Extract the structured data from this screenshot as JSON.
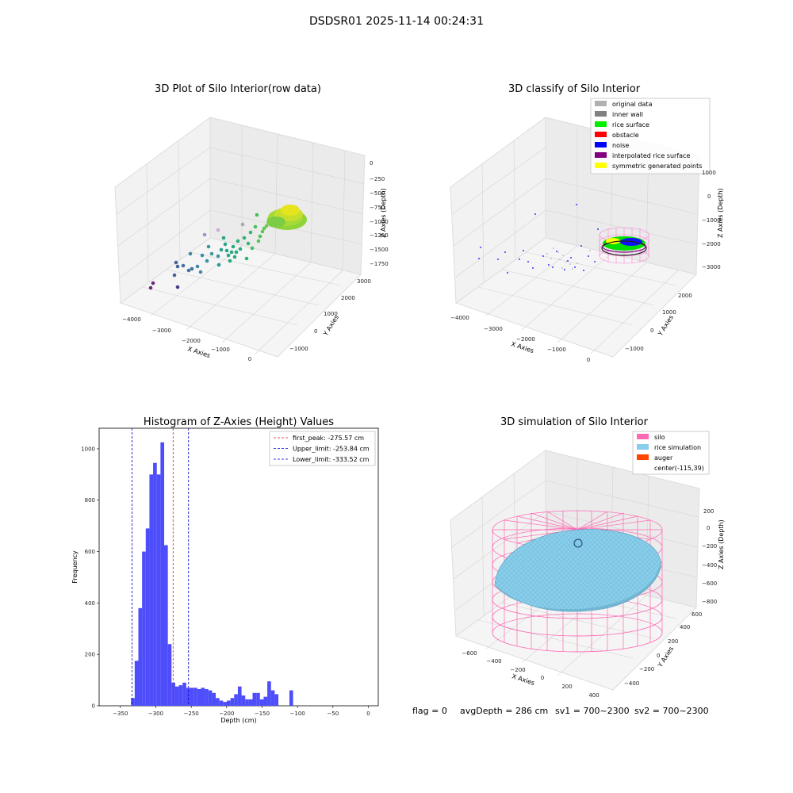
{
  "suptitle": "DSDSR01 2025-11-14 00:24:31",
  "footer": {
    "flag": "flag = 0",
    "avg_depth": "avgDepth = 286 cm",
    "sv1": "sv1 = 700~2300",
    "sv2": "sv2 = 700~2300"
  },
  "colors": {
    "hist_bar": "#4d4dfb",
    "first_peak": "#e31a1c",
    "limits": "#0000cc",
    "silo": "#ff69b4",
    "rice": "#87ceeb",
    "auger": "#ff4500",
    "original": "#b0b0b0",
    "inner_wall": "#808080",
    "rice_surface": "#00ee00",
    "obstacle": "#ff0000",
    "noise": "#0000ff",
    "interpolated": "#800080",
    "symmetric": "#ffff00"
  },
  "panel_raw": {
    "title": "3D Plot of Silo Interior(row data)",
    "xlabel": "X Axies",
    "ylabel": "Y Axies",
    "zlabel": "Z Axies (Depth)",
    "xticks": [
      "−4000",
      "−3000",
      "−2000",
      "−1000",
      "0"
    ],
    "yticks": [
      "−1000",
      "0",
      "1000",
      "2000",
      "3000"
    ],
    "zticks": [
      "0",
      "−250",
      "−500",
      "−750",
      "−1000",
      "−1250",
      "−1500",
      "−1750"
    ]
  },
  "panel_classify": {
    "title": "3D classify of Silo Interior",
    "xlabel": "X Axies",
    "ylabel": "Y Axies",
    "zlabel": "Z Axies (Depth)",
    "xticks": [
      "−4000",
      "−3000",
      "−2000",
      "−1000",
      "0"
    ],
    "yticks": [
      "−1000",
      "0",
      "1000",
      "2000"
    ],
    "zticks": [
      "1000",
      "0",
      "−1000",
      "−2000",
      "−3000"
    ],
    "legend": [
      {
        "label": "original data",
        "color": "#b0b0b0"
      },
      {
        "label": "inner wall",
        "color": "#808080"
      },
      {
        "label": "rice surface",
        "color": "#00ee00"
      },
      {
        "label": "obstacle",
        "color": "#ff0000"
      },
      {
        "label": "noise",
        "color": "#0000ff"
      },
      {
        "label": "interpolated rice surface",
        "color": "#800080"
      },
      {
        "label": "symmetric generated points",
        "color": "#ffff00"
      }
    ]
  },
  "panel_sim": {
    "title": "3D simulation of Silo Interior",
    "xlabel": "X Axies",
    "ylabel": "Y Axies",
    "zlabel": "Z Axies (Depth)",
    "xticks": [
      "−600",
      "−400",
      "−200",
      "0",
      "200",
      "400"
    ],
    "yticks": [
      "−400",
      "−200",
      "0",
      "200",
      "400",
      "600"
    ],
    "zticks": [
      "200",
      "0",
      "−200",
      "−400",
      "−600",
      "−800"
    ],
    "legend": [
      {
        "label": "silo",
        "color": "#ff69b4"
      },
      {
        "label": "rice simulation",
        "color": "#87ceeb"
      },
      {
        "label": "auger",
        "color": "#ff4500"
      },
      {
        "label": "center(-115,39)",
        "color": ""
      }
    ]
  },
  "chart_data": [
    {
      "type": "bar",
      "title": "Histogram of Z-Axies (Height) Values",
      "xlabel": "Depth (cm)",
      "ylabel": "Frequency",
      "xlim": [
        -380,
        14
      ],
      "ylim": [
        0,
        1080
      ],
      "xticks": [
        "−350",
        "−300",
        "−250",
        "−200",
        "−150",
        "−100",
        "−50",
        "0"
      ],
      "xtick_values": [
        -350,
        -300,
        -250,
        -200,
        -150,
        -100,
        -50,
        0
      ],
      "yticks": [
        "0",
        "200",
        "400",
        "600",
        "800",
        "1000"
      ],
      "ytick_values": [
        0,
        200,
        400,
        600,
        800,
        1000
      ],
      "bin_start": -335,
      "bin_width": 5.2,
      "values": [
        30,
        175,
        380,
        600,
        690,
        900,
        945,
        900,
        1025,
        625,
        240,
        90,
        75,
        80,
        90,
        70,
        70,
        70,
        65,
        70,
        65,
        60,
        50,
        30,
        20,
        15,
        20,
        30,
        45,
        75,
        40,
        25,
        25,
        50,
        50,
        25,
        35,
        95,
        60,
        45,
        0,
        0,
        0,
        60
      ],
      "lines": [
        {
          "name": "first_peak: -275.57 cm",
          "x": -275.57,
          "style": "red"
        },
        {
          "name": "Upper_limit: -253.84 cm",
          "x": -253.84,
          "style": "blue"
        },
        {
          "name": "Lower_limit: -333.52 cm",
          "x": -333.52,
          "style": "blue"
        }
      ]
    }
  ]
}
